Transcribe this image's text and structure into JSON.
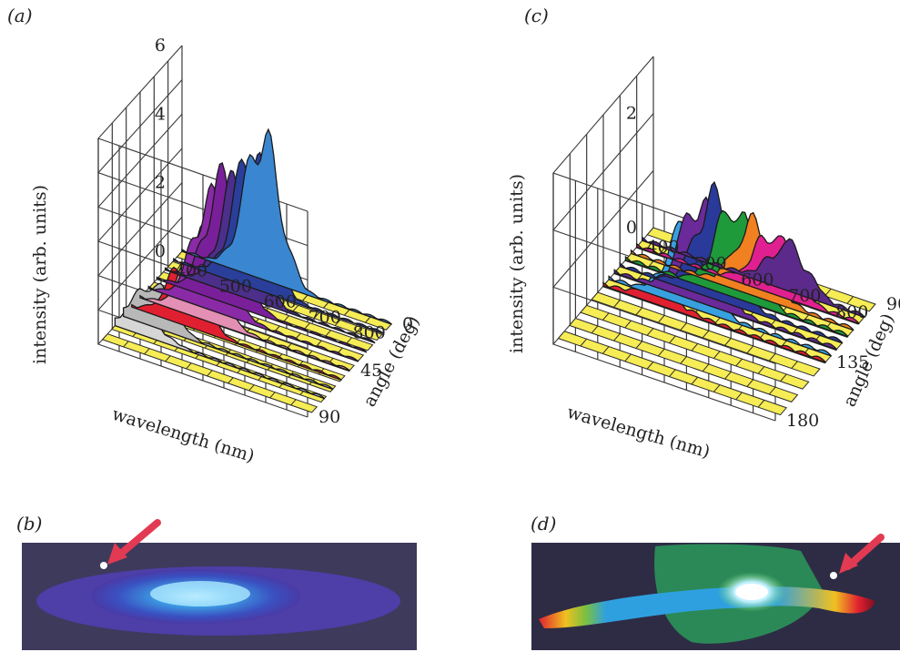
{
  "panels": {
    "a": "(a)",
    "b": "(b)",
    "c": "(c)",
    "d": "(d)"
  },
  "chart_data": [
    {
      "panel": "(a)",
      "type": "area",
      "xlabel": "wavelength (nm)",
      "ylabel": "intensity (arb. units)",
      "zlabel": "angle (deg)",
      "xticks": [
        "400",
        "500",
        "600",
        "700",
        "800"
      ],
      "yticks": [
        "0",
        "2",
        "4",
        "6"
      ],
      "zticks": [
        "0",
        "45",
        "90"
      ],
      "xlim": [
        380,
        850
      ],
      "ylim": [
        0,
        6
      ],
      "zlim": [
        0,
        90
      ],
      "floor_color": "#f6ec55",
      "series": [
        {
          "angle": 0,
          "color": "#3a86d0",
          "peak_nm": 560,
          "peak": 4.8
        },
        {
          "angle": 9,
          "color": "#2a3f9a",
          "peak_nm": 555,
          "peak": 4.6
        },
        {
          "angle": 18,
          "color": "#4b2f8a",
          "peak_nm": 545,
          "peak": 4.0
        },
        {
          "angle": 27,
          "color": "#7a1f9a",
          "peak_nm": 530,
          "peak": 4.1
        },
        {
          "angle": 36,
          "color": "#8a2aa6",
          "peak_nm": 520,
          "peak": 3.7
        },
        {
          "angle": 45,
          "color": "#e48fb4",
          "peak_nm": 520,
          "peak": 2.8
        },
        {
          "angle": 54,
          "color": "#e02030",
          "peak_nm": 500,
          "peak": 2.0
        },
        {
          "angle": 63,
          "color": "#b8b8b8",
          "peak_nm": 450,
          "peak": 1.4
        },
        {
          "angle": 72,
          "color": "#d6d6d6",
          "peak_nm": 440,
          "peak": 0.8
        }
      ]
    },
    {
      "panel": "(c)",
      "type": "area",
      "xlabel": "wavelength (nm)",
      "ylabel": "intensity (arb. units)",
      "zlabel": "angle (deg)",
      "xticks": [
        "400",
        "500",
        "600",
        "700",
        "800"
      ],
      "yticks": [
        "0",
        "2"
      ],
      "zticks": [
        "90",
        "135",
        "180"
      ],
      "xlim": [
        380,
        850
      ],
      "ylim": [
        0,
        3
      ],
      "zlim": [
        90,
        180
      ],
      "floor_color": "#f6ec55",
      "series": [
        {
          "angle": 100,
          "color": "#5b2a8a",
          "peak_nm": 690,
          "peak": 0.9
        },
        {
          "angle": 105,
          "color": "#e02090",
          "peak_nm": 670,
          "peak": 1.2
        },
        {
          "angle": 110,
          "color": "#f08020",
          "peak_nm": 640,
          "peak": 1.4
        },
        {
          "angle": 115,
          "color": "#1e9a3a",
          "peak_nm": 610,
          "peak": 1.8
        },
        {
          "angle": 120,
          "color": "#2a3a9a",
          "peak_nm": 580,
          "peak": 2.0
        },
        {
          "angle": 125,
          "color": "#6a2a9a",
          "peak_nm": 560,
          "peak": 2.0
        },
        {
          "angle": 130,
          "color": "#39a0e0",
          "peak_nm": 545,
          "peak": 1.6
        },
        {
          "angle": 135,
          "color": "#e02030",
          "peak_nm": 500,
          "peak": 0.3
        }
      ]
    }
  ]
}
